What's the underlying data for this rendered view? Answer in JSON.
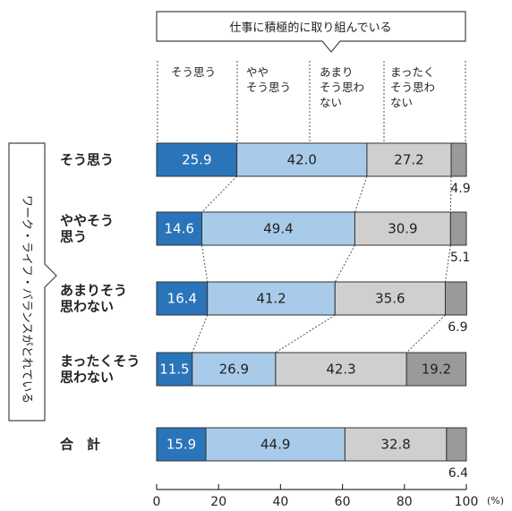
{
  "chart_data": {
    "type": "bar",
    "orientation": "horizontal",
    "stacked": true,
    "title": "仕事に積極的に取り組んでいる",
    "row_group_label": "ワーク・ライフ・バランスがとれている",
    "unit": "(%)",
    "xlim": [
      0,
      100
    ],
    "xticks": [
      "0",
      "20",
      "40",
      "60",
      "80",
      "100"
    ],
    "categories": [
      [
        "そう思う"
      ],
      [
        "ややそう",
        "思う"
      ],
      [
        "あまりそう",
        "思わない"
      ],
      [
        "まったくそう",
        "思わない"
      ],
      [
        "合　計"
      ]
    ],
    "series": [
      {
        "name": [
          "そう思う"
        ],
        "color": "#2a74b9",
        "text_color": "#ffffff",
        "values": [
          25.9,
          14.6,
          16.4,
          11.5,
          15.9
        ]
      },
      {
        "name": [
          "やや",
          "そう思う"
        ],
        "color": "#a9cbea",
        "text_color": "#222222",
        "values": [
          42.0,
          49.4,
          41.2,
          26.9,
          44.9
        ]
      },
      {
        "name": [
          "あまり",
          "そう思わ",
          "ない"
        ],
        "color": "#cfcfcf",
        "text_color": "#222222",
        "values": [
          27.2,
          30.9,
          35.6,
          42.3,
          32.8
        ]
      },
      {
        "name": [
          "まったく",
          "そう思わ",
          "ない"
        ],
        "color": "#9a9a9a",
        "text_color": "#222222",
        "values": [
          4.9,
          5.1,
          6.9,
          19.2,
          6.4
        ]
      }
    ],
    "label_positions": [
      [
        "in",
        "in",
        "in",
        "below"
      ],
      [
        "in",
        "in",
        "in",
        "below"
      ],
      [
        "in",
        "in",
        "in",
        "below"
      ],
      [
        "in",
        "in",
        "in",
        "in"
      ],
      [
        "in",
        "in",
        "in",
        "below"
      ]
    ],
    "grid": false,
    "legend": "top"
  }
}
